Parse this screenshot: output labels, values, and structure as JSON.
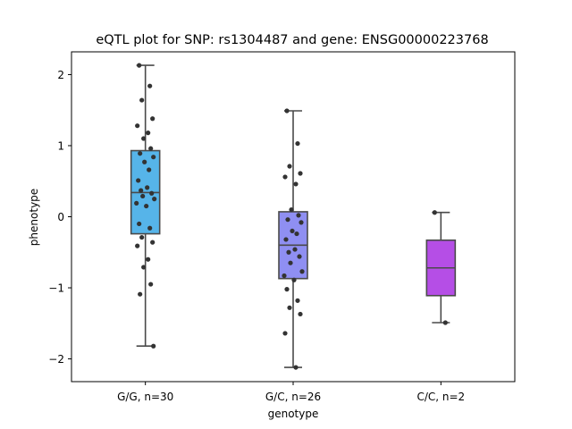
{
  "chart_data": {
    "type": "box",
    "title": "eQTL plot for SNP: rs1304487 and gene: ENSG00000223768",
    "xlabel": "genotype",
    "ylabel": "phenotype",
    "ylim": [
      -2.32,
      2.32
    ],
    "yticks": [
      -2,
      -1,
      0,
      1,
      2
    ],
    "ytick_labels": [
      "−2",
      "−1",
      "0",
      "1",
      "2"
    ],
    "grid": false,
    "groups": [
      {
        "label": "G/G, n=30",
        "color": "#56b4e9",
        "box": {
          "whisker_low": -1.82,
          "q1": -0.24,
          "median": 0.34,
          "q3": 0.93,
          "whisker_high": 2.13
        },
        "points": [
          2.13,
          1.84,
          1.64,
          1.38,
          1.28,
          1.18,
          1.1,
          0.96,
          0.89,
          0.84,
          0.77,
          0.66,
          0.51,
          0.41,
          0.37,
          0.33,
          0.29,
          0.25,
          0.19,
          0.15,
          -0.1,
          -0.16,
          -0.29,
          -0.36,
          -0.41,
          -0.6,
          -0.71,
          -0.95,
          -1.09,
          -1.82
        ]
      },
      {
        "label": "G/C, n=26",
        "color": "#8f8ff2",
        "box": {
          "whisker_low": -2.12,
          "q1": -0.87,
          "median": -0.4,
          "q3": 0.07,
          "whisker_high": 1.49
        },
        "points": [
          1.49,
          1.03,
          0.71,
          0.61,
          0.56,
          0.46,
          0.1,
          0.02,
          -0.04,
          -0.08,
          -0.2,
          -0.24,
          -0.32,
          -0.46,
          -0.5,
          -0.56,
          -0.65,
          -0.77,
          -0.83,
          -0.89,
          -1.02,
          -1.18,
          -1.28,
          -1.37,
          -1.64,
          -2.12
        ]
      },
      {
        "label": "C/C, n=2",
        "color": "#b54ee6",
        "box": {
          "whisker_low": -1.49,
          "q1": -1.11,
          "median": -0.72,
          "q3": -0.33,
          "whisker_high": 0.06
        },
        "points": [
          0.06,
          -1.49
        ]
      }
    ]
  }
}
